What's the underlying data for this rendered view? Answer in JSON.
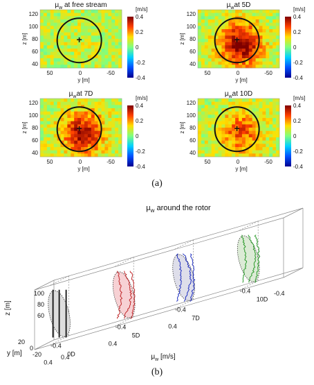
{
  "figure": {
    "caption_a": "(a)",
    "caption_b": "(b)"
  },
  "colors": {
    "circle": "#111111",
    "colorbar_stops": [
      "#00008f",
      "#0050ff",
      "#00d0ff",
      "#7fff7f",
      "#ffe000",
      "#ff4000",
      "#7f0000"
    ],
    "wake_red": "#c0282a",
    "wake_blue": "#2030c0",
    "wake_green": "#2a9a2a",
    "wake_black": "#111111",
    "disk_gray": "#d7d7d7",
    "disk_red": "#f6c9cc",
    "disk_blue": "#d8d8e6",
    "disk_green": "#d6e8cf"
  },
  "chart_data": [
    {
      "type": "heatmap",
      "title_sym": "μ",
      "title_sub": "w",
      "title_rest": " at free stream",
      "xlabel": "y [m]",
      "ylabel": "z [m]",
      "xticks": [
        "50",
        "0",
        "-50"
      ],
      "yticks": [
        "120",
        "100",
        "80",
        "60",
        "40"
      ],
      "colorbar_label": "[m/s]",
      "colorbar_ticks": [
        "0.4",
        "0.2",
        "0",
        "-0.2",
        "-0.4"
      ],
      "clim": [
        -0.4,
        0.4
      ],
      "hub_marker": "+",
      "wake_peak": 0.02
    },
    {
      "type": "heatmap",
      "title_sym": "μ",
      "title_sub": "w",
      "title_rest": "at 5D",
      "xlabel": "y [m]",
      "ylabel": "z [m]",
      "xticks": [
        "50",
        "0",
        "-50"
      ],
      "yticks": [
        "120",
        "100",
        "80",
        "60",
        "40"
      ],
      "colorbar_label": "[m/s]",
      "colorbar_ticks": [
        "0.4",
        "0.2",
        "0",
        "-0.2",
        "-0.4"
      ],
      "clim": [
        -0.4,
        0.4
      ],
      "hub_marker": "+",
      "wake_peak": 0.34
    },
    {
      "type": "heatmap",
      "title_sym": "μ",
      "title_sub": "w",
      "title_rest": "at 7D",
      "xlabel": "y [m]",
      "ylabel": "z [m]",
      "xticks": [
        "50",
        "0",
        "-50"
      ],
      "yticks": [
        "120",
        "100",
        "80",
        "60",
        "40"
      ],
      "colorbar_label": "[m/s]",
      "colorbar_ticks": [
        "0.4",
        "0.2",
        "0",
        "-0.2",
        "-0.4"
      ],
      "clim": [
        -0.4,
        0.4
      ],
      "hub_marker": "+",
      "wake_peak": 0.3
    },
    {
      "type": "heatmap",
      "title_sym": "μ",
      "title_sub": "w",
      "title_rest": "at 10D",
      "xlabel": "y [m]",
      "ylabel": "z [m]",
      "xticks": [
        "50",
        "0",
        "-50"
      ],
      "yticks": [
        "120",
        "100",
        "80",
        "60",
        "40"
      ],
      "colorbar_label": "[m/s]",
      "colorbar_ticks": [
        "0.4",
        "0.2",
        "0",
        "-0.2",
        "-0.4"
      ],
      "clim": [
        -0.4,
        0.4
      ],
      "hub_marker": "+",
      "wake_peak": 0.2
    },
    {
      "type": "line",
      "title_sym": "μ",
      "title_sub": "w",
      "title_rest": " around the rotor",
      "xlabel_sym": "μ",
      "xlabel_sub": "w",
      "xlabel_rest": " [m/s]",
      "ylabel": "y [m]",
      "zlabel": "z [m]",
      "z_ticks": [
        "100",
        "80",
        "60"
      ],
      "y_ticks": [
        "20",
        "0",
        "-20"
      ],
      "stations": [
        "0D",
        "5D",
        "7D",
        "10D"
      ],
      "mu_ticks": [
        "0.4",
        "-0.4"
      ],
      "series": [
        {
          "station": "0D",
          "color": "black"
        },
        {
          "station": "5D",
          "color": "red"
        },
        {
          "station": "7D",
          "color": "blue"
        },
        {
          "station": "10D",
          "color": "green"
        }
      ]
    }
  ]
}
